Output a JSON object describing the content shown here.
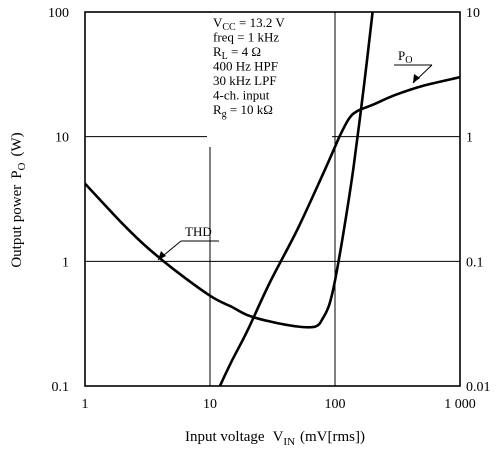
{
  "chart_data": {
    "type": "line",
    "x_axis": {
      "label": "Input voltage",
      "symbol": "V",
      "symbol_sub": "IN",
      "unit": "(mV[rms])",
      "scale": "log",
      "range": [
        1,
        1000
      ],
      "tick_labels": [
        "1",
        "10",
        "100",
        "1 000"
      ]
    },
    "y_axis_left": {
      "label": "Output power",
      "symbol": "P",
      "symbol_sub": "O",
      "unit": "(W)",
      "scale": "log",
      "range": [
        0.1,
        100
      ],
      "tick_labels": [
        "0.1",
        "1",
        "10",
        "100"
      ]
    },
    "y_axis_right": {
      "scale": "log",
      "range": [
        0.01,
        10
      ],
      "tick_labels": [
        "0.01",
        "0.1",
        "1",
        "10"
      ]
    },
    "grid": true,
    "conditions": [
      {
        "main": "V",
        "sub": "CC",
        "rest": " = 13.2 V"
      },
      {
        "main": "freq = 1 kHz",
        "sub": "",
        "rest": ""
      },
      {
        "main": "R",
        "sub": "L",
        "rest": " = 4 Ω"
      },
      {
        "main": "400 Hz HPF",
        "sub": "",
        "rest": ""
      },
      {
        "main": "30 kHz LPF",
        "sub": "",
        "rest": ""
      },
      {
        "main": "4-ch. input",
        "sub": "",
        "rest": ""
      },
      {
        "main": "R",
        "sub": "g",
        "rest": " = 10 kΩ"
      }
    ],
    "series": [
      {
        "name": "P",
        "name_sub": "O",
        "axis": "left",
        "x": [
          12,
          15,
          20,
          30,
          50,
          80,
          100,
          110,
          130,
          150,
          200,
          300,
          500,
          1000
        ],
        "y": [
          0.1,
          0.16,
          0.28,
          0.67,
          1.8,
          5.0,
          8.3,
          10.3,
          14.0,
          16.0,
          18.0,
          21.5,
          25.5,
          30.0
        ]
      },
      {
        "name": "THD",
        "name_sub": "",
        "axis": "right",
        "x": [
          1,
          2,
          3,
          5,
          10,
          15,
          20,
          30,
          50,
          70,
          80,
          90,
          100,
          120,
          140,
          170,
          200
        ],
        "y": [
          0.42,
          0.2,
          0.135,
          0.088,
          0.053,
          0.043,
          0.037,
          0.033,
          0.03,
          0.03,
          0.035,
          0.045,
          0.07,
          0.2,
          0.55,
          2.5,
          10
        ]
      }
    ]
  }
}
